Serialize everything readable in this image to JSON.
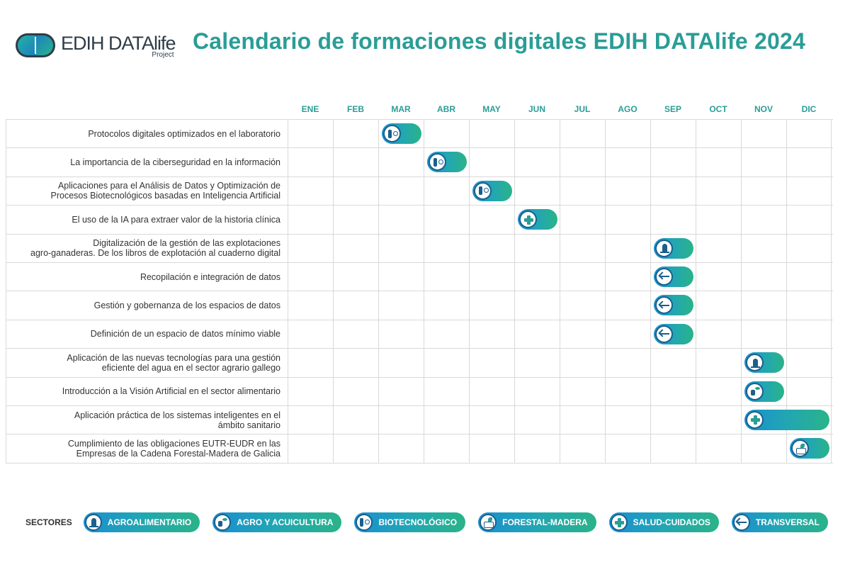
{
  "header": {
    "logo_brand": "EDIH DATAlife",
    "logo_sub": "Project",
    "title": "Calendario de formaciones digitales EDIH DATAlife 2024"
  },
  "months": [
    "ENE",
    "FEB",
    "MAR",
    "ABR",
    "MAY",
    "JUN",
    "JUL",
    "AGO",
    "SEP",
    "OCT",
    "NOV",
    "DIC"
  ],
  "trainings": [
    {
      "label": "Protocolos digitales optimizados en el laboratorio",
      "month": 2,
      "span": 1,
      "sector": "bio"
    },
    {
      "label": "La importancia de la ciberseguridad en la información",
      "month": 3,
      "span": 1,
      "sector": "bio"
    },
    {
      "label": "Aplicaciones para el Análisis de Datos y Optimización de\nProcesos Biotecnológicos basadas en Inteligencia Artificial",
      "month": 4,
      "span": 1,
      "sector": "bio"
    },
    {
      "label": "El uso de la IA para extraer valor de la historia clínica",
      "month": 5,
      "span": 1,
      "sector": "salud"
    },
    {
      "label": "Digitalización de la gestión de las explotaciones\nagro-ganaderas. De los libros de explotación al cuaderno digital",
      "month": 8,
      "span": 1,
      "sector": "agro"
    },
    {
      "label": "Recopilación e integración de datos",
      "month": 8,
      "span": 1,
      "sector": "trans"
    },
    {
      "label": "Gestión y gobernanza de los espacios de datos",
      "month": 8,
      "span": 1,
      "sector": "trans"
    },
    {
      "label": "Definición de un espacio de datos mínimo viable",
      "month": 8,
      "span": 1,
      "sector": "trans"
    },
    {
      "label": "Aplicación de las nuevas tecnologías para una gestión\neficiente del agua en el sector agrario gallego",
      "month": 10,
      "span": 1,
      "sector": "agro"
    },
    {
      "label": "Introducción a la Visión Artificial en el sector alimentario",
      "month": 10,
      "span": 1,
      "sector": "acui"
    },
    {
      "label": "Aplicación práctica de los sistemas inteligentes en el\námbito sanitario",
      "month": 10,
      "span": 2,
      "sector": "salud"
    },
    {
      "label": "Cumplimiento de las obligaciones EUTR-EUDR en las\nEmpresas de la Cadena Forestal-Madera de Galicia",
      "month": 11,
      "span": 1,
      "sector": "forest"
    }
  ],
  "legend": {
    "title": "SECTORES",
    "items": [
      {
        "key": "agro",
        "label": "AGROALIMENTARIO",
        "icon": "wheat-icon"
      },
      {
        "key": "acui",
        "label": "AGRO Y ACUICULTURA",
        "icon": "fish-icon"
      },
      {
        "key": "bio",
        "label": "BIOTECNOLÓGICO",
        "icon": "test-tube-icon"
      },
      {
        "key": "forest",
        "label": "FORESTAL-MADERA",
        "icon": "wood-icon"
      },
      {
        "key": "salud",
        "label": "SALUD-CUIDADOS",
        "icon": "medical-cross-icon"
      },
      {
        "key": "trans",
        "label": "TRANSVERSAL",
        "icon": "arrows-icon"
      }
    ]
  },
  "sector_icons": {
    "agro": "wheat-icon",
    "acui": "fish-icon",
    "bio": "test-tube-icon",
    "forest": "wood-icon",
    "salud": "medical-cross-icon",
    "trans": "arrows-icon"
  },
  "colors": {
    "accent": "#2a9d96",
    "bar_start": "#1a8fd1",
    "bar_end": "#2ab389",
    "icon_ring": "#1b5f8c"
  }
}
